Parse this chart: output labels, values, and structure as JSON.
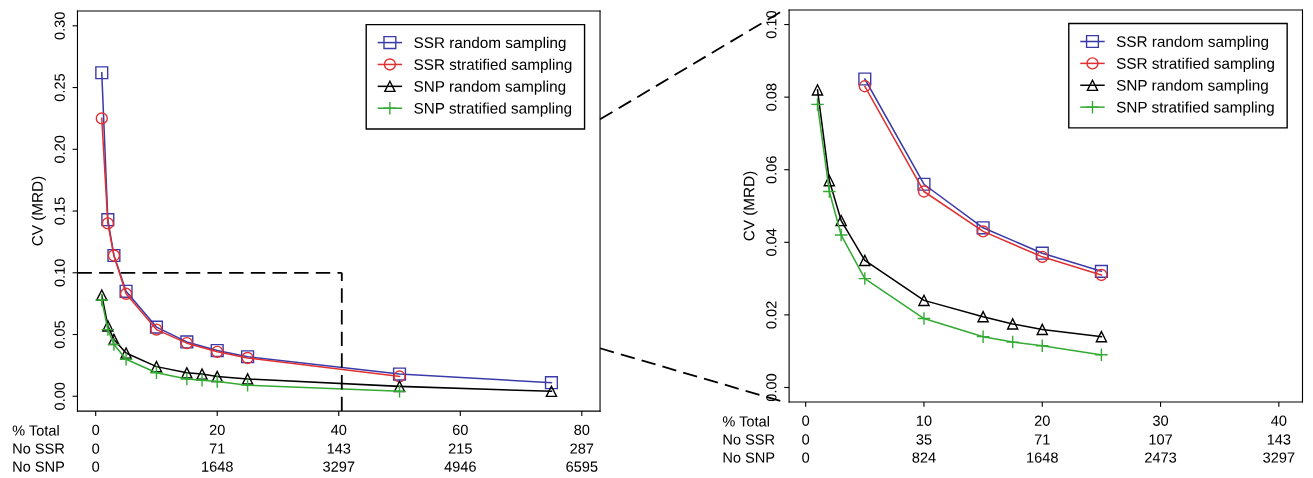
{
  "chart_data": [
    {
      "type": "line",
      "ylabel": "CV (MRD)",
      "legend": "top right",
      "grid": false,
      "xlim": [
        -3,
        83
      ],
      "ylim": [
        -0.012,
        0.312
      ],
      "xticks": [
        0,
        20,
        40,
        60,
        80
      ],
      "yticks": [
        {
          "value": 0,
          "label": "0.00"
        },
        {
          "value": 0.05,
          "label": "0.05"
        },
        {
          "value": 0.1,
          "label": "0.10"
        },
        {
          "value": 0.15,
          "label": "0.15"
        },
        {
          "value": 0.2,
          "label": "0.20"
        },
        {
          "value": 0.25,
          "label": "0.25"
        },
        {
          "value": 0.3,
          "label": "0.30"
        }
      ],
      "annotations": [
        "% Total",
        "No SSR",
        "No SNP",
        "0",
        "71",
        "143",
        "215",
        "287",
        "0",
        "1648",
        "3297",
        "4946",
        "6595"
      ],
      "ref_lines": [
        {
          "axis": "y",
          "value": 0.1,
          "line_style": "dashed",
          "color": "#000000"
        },
        {
          "axis": "x",
          "value": 40.5,
          "line_style": "dashed",
          "color": "#000000"
        }
      ],
      "series": [
        {
          "name": "SSR random sampling",
          "color": "#3a3aa8",
          "marker": "square",
          "x": [
            1,
            2,
            3,
            5,
            10,
            15,
            20,
            25,
            50,
            75
          ],
          "values": [
            0.262,
            0.143,
            0.114,
            0.085,
            0.056,
            0.044,
            0.037,
            0.032,
            0.018,
            0.011
          ]
        },
        {
          "name": "SSR stratified sampling",
          "color": "#e03030",
          "marker": "circle",
          "x": [
            1,
            2,
            3,
            5,
            10,
            15,
            20,
            25,
            50
          ],
          "values": [
            0.225,
            0.14,
            0.114,
            0.083,
            0.054,
            0.043,
            0.036,
            0.031,
            0.016
          ]
        },
        {
          "name": "SNP random sampling",
          "color": "#000000",
          "marker": "triangle",
          "x": [
            1,
            2,
            3,
            5,
            10,
            15,
            17.5,
            20,
            25,
            50,
            75
          ],
          "values": [
            0.082,
            0.057,
            0.046,
            0.035,
            0.024,
            0.019,
            0.018,
            0.016,
            0.014,
            0.008,
            0.004
          ]
        },
        {
          "name": "SNP stratified sampling",
          "color": "#33aa33",
          "marker": "cross",
          "x": [
            1,
            2,
            3,
            5,
            10,
            15,
            17.5,
            20,
            25,
            50
          ],
          "values": [
            0.078,
            0.054,
            0.042,
            0.03,
            0.019,
            0.014,
            0.013,
            0.012,
            0.009,
            0.004
          ]
        }
      ]
    },
    {
      "type": "line",
      "ylabel": "CV (MRD)",
      "legend": "top right",
      "grid": false,
      "xlim": [
        -1.4,
        42
      ],
      "ylim": [
        -0.004,
        0.104
      ],
      "xticks": [
        0,
        10,
        20,
        30,
        40
      ],
      "yticks": [
        {
          "value": 0,
          "label": "0.00"
        },
        {
          "value": 0.02,
          "label": "0.02"
        },
        {
          "value": 0.04,
          "label": "0.04"
        },
        {
          "value": 0.06,
          "label": "0.06"
        },
        {
          "value": 0.08,
          "label": "0.08"
        },
        {
          "value": 0.1,
          "label": "0.10"
        }
      ],
      "annotations": [
        "% Total",
        "No SSR",
        "No SNP",
        "0",
        "35",
        "71",
        "107",
        "143",
        "0",
        "824",
        "1648",
        "2473",
        "3297"
      ],
      "series": [
        {
          "name": "SSR random sampling",
          "color": "#3a3aa8",
          "marker": "square",
          "x": [
            5,
            10,
            15,
            20,
            25
          ],
          "values": [
            0.085,
            0.056,
            0.044,
            0.037,
            0.032
          ]
        },
        {
          "name": "SSR stratified sampling",
          "color": "#e03030",
          "marker": "circle",
          "x": [
            5,
            10,
            15,
            20,
            25
          ],
          "values": [
            0.083,
            0.054,
            0.043,
            0.036,
            0.031
          ]
        },
        {
          "name": "SNP random sampling",
          "color": "#000000",
          "marker": "triangle",
          "x": [
            1,
            2,
            3,
            5,
            10,
            15,
            17.5,
            20,
            25
          ],
          "values": [
            0.082,
            0.057,
            0.046,
            0.035,
            0.024,
            0.0195,
            0.0175,
            0.016,
            0.014
          ]
        },
        {
          "name": "SNP stratified sampling",
          "color": "#33aa33",
          "marker": "cross",
          "x": [
            1,
            2,
            3,
            5,
            10,
            15,
            17.5,
            20,
            25
          ],
          "values": [
            0.078,
            0.054,
            0.042,
            0.03,
            0.019,
            0.014,
            0.0125,
            0.0115,
            0.009
          ]
        }
      ]
    }
  ]
}
